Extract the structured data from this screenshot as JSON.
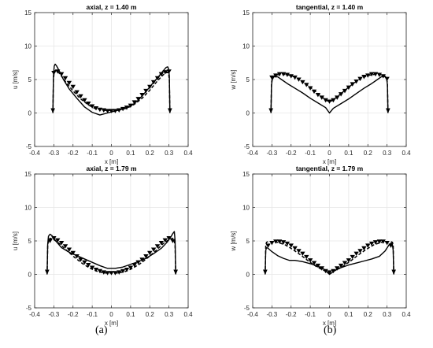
{
  "panel_labels": {
    "a": "(a)",
    "b": "(b)"
  },
  "colors": {
    "grid": "#e6e6e6",
    "axis": "#262626",
    "line": "#000000",
    "marker": "#000000",
    "background": "#ffffff"
  },
  "chart_data": [
    {
      "type": "line",
      "title": "axial, z = 1.40 m",
      "xlabel": "x [m]",
      "ylabel": "u [m/s]",
      "xlim": [
        -0.4,
        0.4
      ],
      "ylim": [
        -5,
        15
      ],
      "xticks": [
        -0.4,
        -0.3,
        -0.2,
        -0.1,
        0,
        0.1,
        0.2,
        0.3,
        0.4
      ],
      "yticks": [
        -5,
        0,
        5,
        10,
        15
      ],
      "xtick_labels": [
        "-0.4",
        "-0.3",
        "-0.2",
        "-0.1",
        "0",
        "0.1",
        "0.2",
        "0.3",
        "0.4"
      ],
      "ytick_labels": [
        "-5",
        "0",
        "5",
        "10",
        "15"
      ],
      "grid": true,
      "series": [
        {
          "style": "solid",
          "x": [
            -0.305,
            -0.302,
            -0.298,
            -0.293,
            -0.285,
            -0.27,
            -0.25,
            -0.22,
            -0.18,
            -0.14,
            -0.1,
            -0.06,
            -0.02,
            0.02,
            0.06,
            0.1,
            0.14,
            0.18,
            0.22,
            0.25,
            0.27,
            0.285,
            0.293,
            0.298,
            0.302,
            0.305
          ],
          "y": [
            0,
            5.5,
            7.0,
            7.3,
            7.0,
            6.2,
            5.0,
            3.6,
            2.2,
            0.9,
            0.1,
            -0.3,
            0.0,
            0.3,
            0.6,
            1.0,
            1.9,
            3.2,
            4.6,
            5.6,
            6.3,
            6.8,
            6.9,
            6.6,
            5.5,
            0
          ]
        },
        {
          "style": "dashed",
          "x": [
            -0.305,
            -0.302,
            -0.298,
            -0.29,
            -0.27,
            -0.24,
            -0.2,
            -0.16,
            -0.12,
            -0.08,
            -0.04,
            0,
            0.04,
            0.08,
            0.12,
            0.16,
            0.2,
            0.24,
            0.27,
            0.29,
            0.298,
            0.302,
            0.305
          ],
          "y": [
            0,
            5.0,
            6.2,
            6.4,
            5.9,
            4.7,
            3.3,
            2.1,
            1.2,
            0.6,
            0.4,
            0.4,
            0.5,
            0.7,
            1.3,
            2.2,
            3.4,
            4.8,
            5.7,
            6.1,
            6.0,
            4.8,
            0
          ]
        },
        {
          "style": "markers",
          "x": [
            -0.3,
            -0.28,
            -0.26,
            -0.24,
            -0.22,
            -0.2,
            -0.18,
            -0.16,
            -0.14,
            -0.12,
            -0.1,
            -0.08,
            -0.06,
            -0.04,
            -0.02,
            0,
            0.02,
            0.04,
            0.06,
            0.08,
            0.1,
            0.12,
            0.14,
            0.16,
            0.18,
            0.2,
            0.22,
            0.24,
            0.26,
            0.28,
            0.3
          ],
          "y": [
            6.0,
            6.2,
            5.8,
            5.2,
            4.5,
            3.9,
            3.1,
            2.5,
            1.9,
            1.4,
            1.0,
            0.7,
            0.5,
            0.4,
            0.3,
            0.3,
            0.3,
            0.4,
            0.6,
            0.8,
            1.1,
            1.6,
            2.1,
            2.7,
            3.3,
            3.9,
            4.6,
            5.2,
            5.8,
            6.1,
            6.2
          ]
        }
      ]
    },
    {
      "type": "line",
      "title": "tangential, z = 1.40 m",
      "xlabel": "x [m]",
      "ylabel": "w [m/s]",
      "xlim": [
        -0.4,
        0.4
      ],
      "ylim": [
        -5,
        15
      ],
      "xticks": [
        -0.4,
        -0.3,
        -0.2,
        -0.1,
        0,
        0.1,
        0.2,
        0.3,
        0.4
      ],
      "yticks": [
        -5,
        0,
        5,
        10,
        15
      ],
      "xtick_labels": [
        "-0.4",
        "-0.3",
        "-0.2",
        "-0.1",
        "0",
        "0.1",
        "0.2",
        "0.3",
        "0.4"
      ],
      "ytick_labels": [
        "-5",
        "0",
        "5",
        "10",
        "15"
      ],
      "grid": true,
      "series": [
        {
          "style": "solid",
          "x": [
            -0.305,
            -0.302,
            -0.298,
            -0.29,
            -0.27,
            -0.25,
            -0.22,
            -0.18,
            -0.14,
            -0.1,
            -0.06,
            -0.02,
            0,
            0.02,
            0.06,
            0.1,
            0.14,
            0.18,
            0.22,
            0.25,
            0.27,
            0.29,
            0.298,
            0.302,
            0.305
          ],
          "y": [
            0,
            4.2,
            5.0,
            5.4,
            5.4,
            5.0,
            4.4,
            3.7,
            3.0,
            2.2,
            1.5,
            0.8,
            0.0,
            0.7,
            1.4,
            2.1,
            2.9,
            3.7,
            4.4,
            5.0,
            5.4,
            5.5,
            5.1,
            4.2,
            0
          ]
        },
        {
          "style": "dashed",
          "x": [
            -0.305,
            -0.302,
            -0.298,
            -0.29,
            -0.27,
            -0.24,
            -0.2,
            -0.16,
            -0.12,
            -0.08,
            -0.04,
            -0.01,
            0.01,
            0.04,
            0.08,
            0.12,
            0.16,
            0.2,
            0.24,
            0.27,
            0.29,
            0.298,
            0.302,
            0.305
          ],
          "y": [
            0,
            4.5,
            5.2,
            5.5,
            5.7,
            5.8,
            5.6,
            5.1,
            4.3,
            3.4,
            2.4,
            1.8,
            1.8,
            2.4,
            3.4,
            4.3,
            5.1,
            5.6,
            5.8,
            5.7,
            5.4,
            5.1,
            4.5,
            0
          ]
        },
        {
          "style": "markers",
          "x": [
            -0.3,
            -0.28,
            -0.26,
            -0.24,
            -0.22,
            -0.2,
            -0.18,
            -0.16,
            -0.14,
            -0.12,
            -0.1,
            -0.08,
            -0.06,
            -0.04,
            -0.02,
            0,
            0.02,
            0.04,
            0.06,
            0.08,
            0.1,
            0.12,
            0.14,
            0.16,
            0.18,
            0.2,
            0.22,
            0.24,
            0.26,
            0.28,
            0.3
          ],
          "y": [
            5.3,
            5.6,
            5.8,
            5.8,
            5.7,
            5.5,
            5.3,
            5.0,
            4.6,
            4.2,
            3.7,
            3.2,
            2.7,
            2.3,
            1.9,
            1.7,
            1.9,
            2.3,
            2.8,
            3.3,
            3.8,
            4.3,
            4.7,
            5.1,
            5.4,
            5.6,
            5.8,
            5.8,
            5.7,
            5.5,
            5.1
          ]
        }
      ]
    },
    {
      "type": "line",
      "title": "axial, z = 1.79 m",
      "xlabel": "x [m]",
      "ylabel": "u [m/s]",
      "xlim": [
        -0.4,
        0.4
      ],
      "ylim": [
        -5,
        15
      ],
      "xticks": [
        -0.4,
        -0.3,
        -0.2,
        -0.1,
        0,
        0.1,
        0.2,
        0.3,
        0.4
      ],
      "yticks": [
        -5,
        0,
        5,
        10,
        15
      ],
      "xtick_labels": [
        "-0.4",
        "-0.3",
        "-0.2",
        "-0.1",
        "0",
        "0.1",
        "0.2",
        "0.3",
        "0.4"
      ],
      "ytick_labels": [
        "-5",
        "0",
        "5",
        "10",
        "15"
      ],
      "grid": true,
      "series": [
        {
          "style": "solid",
          "x": [
            -0.335,
            -0.332,
            -0.328,
            -0.32,
            -0.31,
            -0.29,
            -0.26,
            -0.22,
            -0.18,
            -0.14,
            -0.1,
            -0.06,
            -0.02,
            0.02,
            0.06,
            0.1,
            0.14,
            0.18,
            0.22,
            0.26,
            0.29,
            0.31,
            0.32,
            0.328,
            0.332,
            0.335
          ],
          "y": [
            0,
            4.5,
            5.7,
            6.0,
            5.8,
            5.0,
            4.0,
            3.3,
            2.8,
            2.3,
            1.8,
            1.3,
            0.9,
            0.9,
            1.1,
            1.5,
            1.9,
            2.4,
            3.1,
            3.9,
            4.8,
            5.6,
            6.1,
            6.4,
            5.0,
            0
          ]
        },
        {
          "style": "dashed",
          "x": [
            -0.335,
            -0.332,
            -0.328,
            -0.32,
            -0.3,
            -0.27,
            -0.23,
            -0.19,
            -0.15,
            -0.11,
            -0.07,
            -0.03,
            0,
            0.03,
            0.07,
            0.11,
            0.15,
            0.19,
            0.23,
            0.27,
            0.3,
            0.32,
            0.328,
            0.332,
            0.335
          ],
          "y": [
            0,
            4.2,
            5.1,
            5.4,
            5.2,
            4.6,
            3.5,
            2.5,
            1.6,
            0.9,
            0.4,
            0.2,
            0.2,
            0.2,
            0.4,
            0.9,
            1.6,
            2.5,
            3.5,
            4.6,
            5.2,
            5.4,
            5.0,
            4.2,
            0
          ]
        },
        {
          "style": "markers",
          "x": [
            -0.32,
            -0.3,
            -0.28,
            -0.26,
            -0.24,
            -0.22,
            -0.2,
            -0.18,
            -0.16,
            -0.14,
            -0.12,
            -0.1,
            -0.08,
            -0.06,
            -0.04,
            -0.02,
            0,
            0.02,
            0.04,
            0.06,
            0.08,
            0.1,
            0.12,
            0.14,
            0.16,
            0.18,
            0.2,
            0.22,
            0.24,
            0.26,
            0.28,
            0.3,
            0.32
          ],
          "y": [
            5.0,
            5.4,
            5.1,
            4.7,
            4.2,
            3.7,
            3.2,
            2.7,
            2.2,
            1.8,
            1.4,
            1.0,
            0.7,
            0.5,
            0.3,
            0.2,
            0.2,
            0.2,
            0.3,
            0.5,
            0.7,
            1.0,
            1.4,
            1.8,
            2.2,
            2.7,
            3.2,
            3.7,
            4.2,
            4.7,
            5.1,
            5.4,
            5.0
          ]
        }
      ]
    },
    {
      "type": "line",
      "title": "tangential, z = 1.79 m",
      "xlabel": "x [m]",
      "ylabel": "w [m/s]",
      "xlim": [
        -0.4,
        0.4
      ],
      "ylim": [
        -5,
        15
      ],
      "xticks": [
        -0.4,
        -0.3,
        -0.2,
        -0.1,
        0,
        0.1,
        0.2,
        0.3,
        0.4
      ],
      "yticks": [
        -5,
        0,
        5,
        10,
        15
      ],
      "xtick_labels": [
        "-0.4",
        "-0.3",
        "-0.2",
        "-0.1",
        "0",
        "0.1",
        "0.2",
        "0.3",
        "0.4"
      ],
      "ytick_labels": [
        "-5",
        "0",
        "5",
        "10",
        "15"
      ],
      "grid": true,
      "series": [
        {
          "style": "solid",
          "x": [
            -0.335,
            -0.332,
            -0.328,
            -0.32,
            -0.3,
            -0.27,
            -0.24,
            -0.21,
            -0.18,
            -0.14,
            -0.1,
            -0.06,
            -0.03,
            0,
            0.03,
            0.06,
            0.1,
            0.14,
            0.18,
            0.22,
            0.26,
            0.29,
            0.31,
            0.322,
            0.328,
            0.332,
            0.335
          ],
          "y": [
            0,
            3.6,
            4.0,
            3.9,
            3.4,
            2.8,
            2.4,
            2.1,
            2.1,
            1.9,
            1.6,
            1.2,
            0.8,
            0.0,
            0.6,
            1.0,
            1.4,
            1.7,
            2.0,
            2.3,
            2.7,
            3.5,
            4.4,
            4.7,
            4.4,
            3.6,
            0
          ]
        },
        {
          "style": "dashed",
          "x": [
            -0.335,
            -0.332,
            -0.328,
            -0.32,
            -0.3,
            -0.27,
            -0.23,
            -0.19,
            -0.15,
            -0.11,
            -0.07,
            -0.03,
            0,
            0.03,
            0.07,
            0.11,
            0.15,
            0.19,
            0.23,
            0.27,
            0.3,
            0.32,
            0.328,
            0.332,
            0.335
          ],
          "y": [
            0,
            4.4,
            4.8,
            4.9,
            4.9,
            4.8,
            4.4,
            3.7,
            2.9,
            2.0,
            1.2,
            0.6,
            0.3,
            0.6,
            1.2,
            2.0,
            2.9,
            3.7,
            4.4,
            4.8,
            4.9,
            4.9,
            4.8,
            4.4,
            0
          ]
        },
        {
          "style": "markers",
          "x": [
            -0.32,
            -0.3,
            -0.28,
            -0.26,
            -0.24,
            -0.22,
            -0.2,
            -0.18,
            -0.16,
            -0.14,
            -0.12,
            -0.1,
            -0.08,
            -0.06,
            -0.04,
            -0.02,
            0,
            0.02,
            0.04,
            0.06,
            0.08,
            0.1,
            0.12,
            0.14,
            0.16,
            0.18,
            0.2,
            0.22,
            0.24,
            0.26,
            0.28,
            0.3,
            0.32
          ],
          "y": [
            4.3,
            4.7,
            4.9,
            4.9,
            4.8,
            4.6,
            4.3,
            3.9,
            3.5,
            3.1,
            2.6,
            2.1,
            1.7,
            1.3,
            0.9,
            0.5,
            0.3,
            0.5,
            0.9,
            1.3,
            1.7,
            2.1,
            2.6,
            3.1,
            3.5,
            3.9,
            4.3,
            4.6,
            4.8,
            4.9,
            4.9,
            4.7,
            4.3
          ]
        }
      ]
    }
  ]
}
